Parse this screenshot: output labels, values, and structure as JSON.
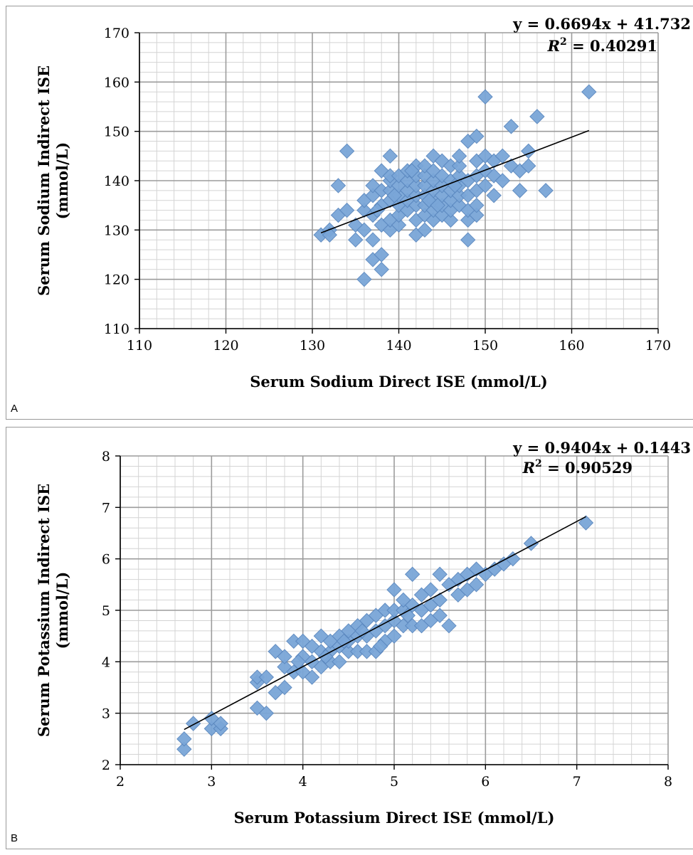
{
  "charts": [
    {
      "panel_label": "A",
      "chart_data": {
        "type": "scatter",
        "xlabel": "Serum Sodium Direct ISE (mmol/L)",
        "ylabel_lines": [
          "Serum Sodium Indirect ISE",
          "(mmol/L)"
        ],
        "xlim": [
          110,
          170
        ],
        "ylim": [
          110,
          170
        ],
        "xticks": [
          110,
          120,
          130,
          140,
          150,
          160,
          170
        ],
        "yticks": [
          110,
          120,
          130,
          140,
          150,
          160,
          170
        ],
        "minor_step": 2,
        "grid": true,
        "marker_color": "#7aa6d8",
        "equation": "y = 0.6694x + 41.732",
        "r2_label": "R",
        "r2_value": " = 0.40291",
        "trendline": {
          "slope": 0.6694,
          "intercept": 41.732,
          "x_range": [
            131,
            162
          ]
        },
        "x": [
          131,
          132,
          132,
          133,
          133,
          134,
          134,
          135,
          135,
          136,
          136,
          136,
          136,
          137,
          137,
          137,
          137,
          137,
          138,
          138,
          138,
          138,
          138,
          138,
          139,
          139,
          139,
          139,
          139,
          139,
          139,
          140,
          140,
          140,
          140,
          140,
          140,
          141,
          141,
          141,
          141,
          141,
          142,
          142,
          142,
          142,
          142,
          142,
          142,
          143,
          143,
          143,
          143,
          143,
          143,
          143,
          144,
          144,
          144,
          144,
          144,
          144,
          144,
          145,
          145,
          145,
          145,
          145,
          145,
          146,
          146,
          146,
          146,
          146,
          146,
          147,
          147,
          147,
          147,
          147,
          147,
          148,
          148,
          148,
          148,
          148,
          148,
          149,
          149,
          149,
          149,
          149,
          149,
          150,
          150,
          150,
          150,
          151,
          151,
          151,
          152,
          152,
          153,
          153,
          154,
          154,
          155,
          155,
          156,
          157,
          162,
          143.5,
          146.5,
          141.5,
          144.5,
          139.5,
          137.5
        ],
        "y": [
          129,
          130,
          129,
          133,
          139,
          134,
          146,
          128,
          131,
          120,
          130,
          134,
          136,
          124,
          128,
          133,
          137,
          139,
          122,
          125,
          131,
          135,
          138,
          142,
          130,
          132,
          136,
          138,
          140,
          141,
          145,
          131,
          133,
          135,
          137,
          139,
          141,
          134,
          136,
          138,
          140,
          142,
          129,
          132,
          135,
          137,
          139,
          141,
          143,
          130,
          133,
          135,
          137,
          139,
          141,
          143,
          132,
          134,
          136,
          138,
          140,
          142,
          145,
          133,
          135,
          137,
          139,
          141,
          144,
          132,
          134,
          136,
          138,
          140,
          143,
          135,
          137,
          139,
          141,
          143,
          145,
          128,
          132,
          134,
          137,
          140,
          148,
          133,
          135,
          138,
          141,
          144,
          149,
          139,
          142,
          145,
          157,
          137,
          141,
          144,
          140,
          145,
          143,
          151,
          138,
          142,
          143,
          146,
          153,
          138,
          158,
          136,
          139,
          142,
          135,
          137,
          134
        ]
      }
    },
    {
      "panel_label": "B",
      "chart_data": {
        "type": "scatter",
        "xlabel": "Serum Potassium Direct ISE (mmol/L)",
        "ylabel_lines": [
          "Serum Potassium Indirect ISE",
          "(mmol/L)"
        ],
        "xlim": [
          2,
          8
        ],
        "ylim": [
          2,
          8
        ],
        "xticks": [
          2,
          3,
          4,
          5,
          6,
          7,
          8
        ],
        "yticks": [
          2,
          3,
          4,
          5,
          6,
          7,
          8
        ],
        "minor_step": 0.2,
        "grid": true,
        "marker_color": "#7aa6d8",
        "equation": "y = 0.9404x + 0.1443",
        "r2_label": "R",
        "r2_value": " = 0.90529",
        "trendline": {
          "slope": 0.9404,
          "intercept": 0.1443,
          "x_range": [
            2.7,
            7.1
          ]
        },
        "x": [
          2.7,
          2.7,
          2.8,
          3.0,
          3.0,
          3.1,
          3.1,
          3.5,
          3.5,
          3.5,
          3.6,
          3.6,
          3.7,
          3.7,
          3.8,
          3.8,
          3.8,
          3.9,
          3.9,
          4.0,
          4.0,
          4.0,
          4.1,
          4.1,
          4.1,
          4.2,
          4.2,
          4.2,
          4.3,
          4.3,
          4.3,
          4.4,
          4.4,
          4.4,
          4.5,
          4.5,
          4.5,
          4.6,
          4.6,
          4.6,
          4.7,
          4.7,
          4.7,
          4.8,
          4.8,
          4.8,
          4.9,
          4.9,
          4.9,
          5.0,
          5.0,
          5.0,
          5.0,
          5.1,
          5.1,
          5.1,
          5.2,
          5.2,
          5.2,
          5.3,
          5.3,
          5.3,
          5.4,
          5.4,
          5.4,
          5.5,
          5.5,
          5.5,
          5.6,
          5.6,
          5.7,
          5.7,
          5.8,
          5.8,
          5.9,
          5.9,
          6.0,
          6.1,
          6.2,
          6.3,
          6.5,
          7.1,
          4.45,
          4.65,
          4.85,
          5.15,
          4.25,
          3.95
        ],
        "y": [
          2.3,
          2.5,
          2.8,
          2.7,
          2.9,
          2.7,
          2.8,
          3.1,
          3.6,
          3.7,
          3.0,
          3.7,
          3.4,
          4.2,
          3.5,
          3.9,
          4.1,
          3.8,
          4.4,
          3.8,
          4.1,
          4.4,
          3.7,
          4.0,
          4.3,
          3.9,
          4.2,
          4.5,
          4.0,
          4.2,
          4.4,
          4.0,
          4.3,
          4.5,
          4.2,
          4.4,
          4.6,
          4.2,
          4.5,
          4.7,
          4.2,
          4.5,
          4.8,
          4.2,
          4.6,
          4.9,
          4.4,
          4.7,
          5.0,
          4.5,
          4.8,
          5.0,
          5.4,
          4.7,
          5.0,
          5.2,
          4.7,
          5.1,
          5.7,
          4.7,
          5.0,
          5.3,
          4.8,
          5.1,
          5.4,
          4.9,
          5.2,
          5.7,
          4.7,
          5.5,
          5.3,
          5.6,
          5.4,
          5.7,
          5.5,
          5.8,
          5.7,
          5.8,
          5.9,
          6.0,
          6.3,
          6.7,
          4.4,
          4.6,
          4.3,
          4.9,
          4.1,
          4.0
        ]
      }
    }
  ]
}
